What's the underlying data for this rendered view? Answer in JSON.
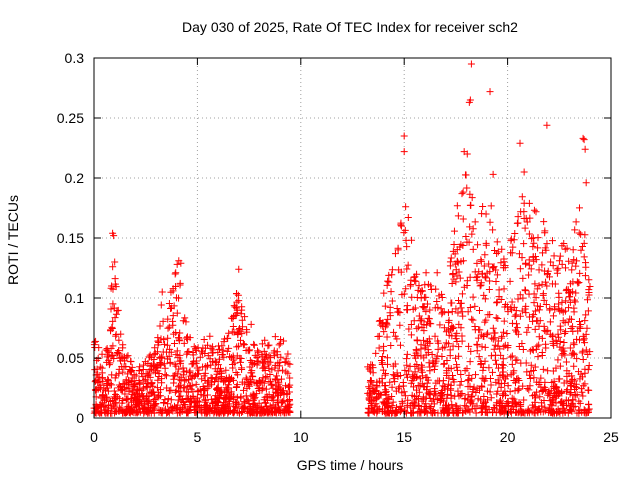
{
  "chart_data": {
    "type": "scatter",
    "title": "Day 030 of 2025, Rate Of TEC Index for receiver sch2",
    "xlabel": "GPS time / hours",
    "ylabel": "ROTI / TECUs",
    "xlim": [
      0,
      25
    ],
    "ylim": [
      0,
      0.3
    ],
    "xticks": [
      "0",
      "5",
      "10",
      "15",
      "20",
      "25"
    ],
    "yticks": [
      "0",
      "0.05",
      "0.1",
      "0.15",
      "0.2",
      "0.25",
      "0.3"
    ],
    "grid": true,
    "marker": "plus",
    "color": "#ff0000",
    "envelope": [
      [
        0.0,
        0.07
      ],
      [
        0.25,
        0.06
      ],
      [
        0.5,
        0.055
      ],
      [
        0.75,
        0.065
      ],
      [
        0.9,
        0.15
      ],
      [
        1.0,
        0.13
      ],
      [
        1.25,
        0.075
      ],
      [
        1.5,
        0.055
      ],
      [
        2.0,
        0.045
      ],
      [
        2.5,
        0.05
      ],
      [
        3.0,
        0.06
      ],
      [
        3.25,
        0.1
      ],
      [
        3.5,
        0.09
      ],
      [
        3.75,
        0.11
      ],
      [
        4.0,
        0.13
      ],
      [
        4.25,
        0.12
      ],
      [
        4.5,
        0.07
      ],
      [
        5.0,
        0.06
      ],
      [
        5.5,
        0.08
      ],
      [
        6.0,
        0.06
      ],
      [
        6.5,
        0.07
      ],
      [
        7.0,
        0.12
      ],
      [
        7.25,
        0.1
      ],
      [
        7.5,
        0.06
      ],
      [
        8.0,
        0.07
      ],
      [
        8.5,
        0.06
      ],
      [
        9.0,
        0.075
      ],
      [
        9.45,
        0.05
      ],
      [
        13.25,
        0.05
      ],
      [
        13.5,
        0.045
      ],
      [
        14.0,
        0.11
      ],
      [
        14.5,
        0.14
      ],
      [
        15.0,
        0.2
      ],
      [
        15.5,
        0.13
      ],
      [
        16.0,
        0.12
      ],
      [
        16.5,
        0.13
      ],
      [
        17.0,
        0.1
      ],
      [
        17.5,
        0.17
      ],
      [
        18.0,
        0.22
      ],
      [
        18.5,
        0.16
      ],
      [
        19.0,
        0.2
      ],
      [
        19.5,
        0.15
      ],
      [
        20.0,
        0.13
      ],
      [
        20.5,
        0.2
      ],
      [
        21.0,
        0.18
      ],
      [
        21.5,
        0.17
      ],
      [
        22.0,
        0.16
      ],
      [
        22.5,
        0.16
      ],
      [
        23.0,
        0.14
      ],
      [
        23.5,
        0.2
      ],
      [
        24.0,
        0.12
      ]
    ],
    "gaps": [
      [
        9.5,
        13.2
      ]
    ],
    "outliers": [
      [
        18.25,
        0.295
      ],
      [
        18.2,
        0.265
      ],
      [
        18.15,
        0.263
      ],
      [
        19.15,
        0.272
      ],
      [
        21.9,
        0.244
      ],
      [
        15.0,
        0.235
      ],
      [
        15.0,
        0.222
      ],
      [
        17.9,
        0.222
      ],
      [
        18.05,
        0.22
      ],
      [
        20.6,
        0.229
      ],
      [
        23.65,
        0.233
      ],
      [
        23.7,
        0.232
      ],
      [
        23.75,
        0.224
      ],
      [
        19.3,
        0.203
      ],
      [
        20.8,
        0.205
      ],
      [
        23.8,
        0.196
      ],
      [
        0.9,
        0.154
      ],
      [
        0.95,
        0.152
      ],
      [
        1.0,
        0.13
      ],
      [
        0.85,
        0.11
      ],
      [
        4.1,
        0.131
      ],
      [
        4.2,
        0.129
      ],
      [
        7.0,
        0.124
      ],
      [
        3.3,
        0.105
      ],
      [
        7.6,
        0.078
      ]
    ],
    "sample_points": 2600
  }
}
